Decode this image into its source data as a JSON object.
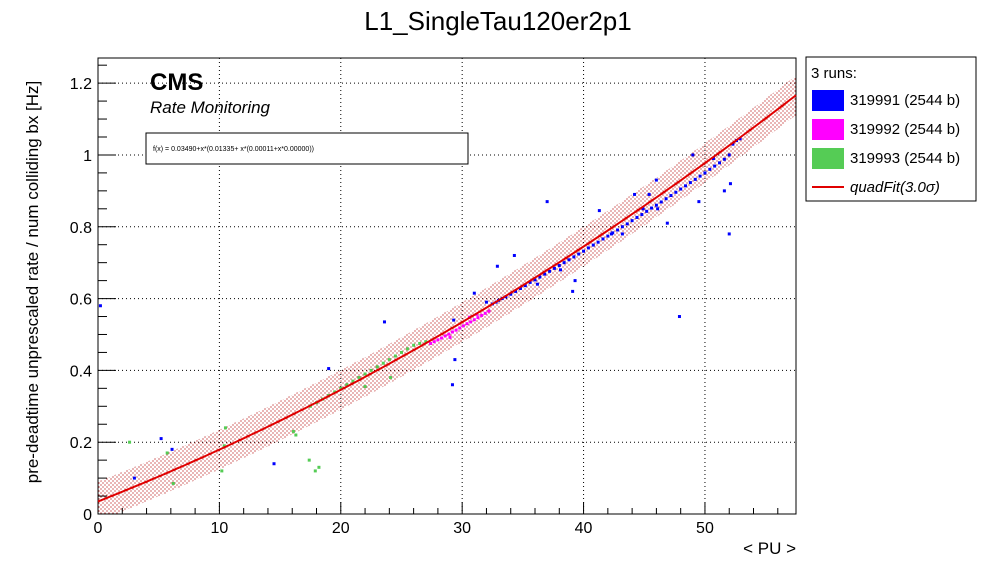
{
  "chart_data": {
    "type": "scatter",
    "title": "L1_SingleTau120er2p1",
    "xlabel": "< PU >",
    "ylabel": "pre-deadtime unprescaled rate / num colliding bx [Hz]",
    "xlim": [
      0,
      57.5
    ],
    "ylim": [
      0,
      1.27
    ],
    "x_ticks": [
      "0",
      "10",
      "20",
      "30",
      "40",
      "50"
    ],
    "y_ticks": [
      "0",
      "0.2",
      "0.4",
      "0.6",
      "0.8",
      "1",
      "1.2"
    ],
    "grid": true,
    "brand": "CMS",
    "subtitle": "Rate Monitoring",
    "fit_formula": "f(x) = 0.03490+x*(0.01335+ x*(0.00011+x*0.00000))",
    "fit": {
      "name": "quadFit(3.0σ)",
      "coefficients": [
        0.0349,
        0.01335,
        0.00011
      ],
      "band_halfwidth": 0.055,
      "color": "#e00000"
    },
    "legend": {
      "header": "3 runs:",
      "position": "outside-right",
      "entries": [
        {
          "label": "319991 (2544 b)",
          "color": "#0000ff"
        },
        {
          "label": "319992 (2544 b)",
          "color": "#ff00ff"
        },
        {
          "label": "319993 (2544 b)",
          "color": "#55cc55"
        },
        {
          "label": "quadFit(3.0σ)",
          "color": "#e00000",
          "kind": "line"
        }
      ]
    },
    "series": [
      {
        "name": "319991 (2544 b)",
        "color": "#0000ff",
        "points": [
          [
            32.5,
            0.585
          ],
          [
            32.8,
            0.59
          ],
          [
            33.0,
            0.595
          ],
          [
            33.3,
            0.6
          ],
          [
            33.6,
            0.605
          ],
          [
            34.0,
            0.612
          ],
          [
            34.4,
            0.62
          ],
          [
            34.8,
            0.628
          ],
          [
            35.2,
            0.636
          ],
          [
            35.6,
            0.645
          ],
          [
            36.0,
            0.652
          ],
          [
            36.4,
            0.66
          ],
          [
            36.8,
            0.668
          ],
          [
            37.2,
            0.676
          ],
          [
            37.6,
            0.684
          ],
          [
            38.0,
            0.692
          ],
          [
            38.4,
            0.7
          ],
          [
            38.8,
            0.708
          ],
          [
            39.2,
            0.716
          ],
          [
            39.6,
            0.724
          ],
          [
            40.0,
            0.732
          ],
          [
            40.4,
            0.741
          ],
          [
            40.8,
            0.749
          ],
          [
            41.2,
            0.757
          ],
          [
            41.6,
            0.766
          ],
          [
            42.0,
            0.774
          ],
          [
            42.4,
            0.783
          ],
          [
            42.8,
            0.791
          ],
          [
            43.2,
            0.8
          ],
          [
            43.6,
            0.808
          ],
          [
            44.0,
            0.817
          ],
          [
            44.4,
            0.826
          ],
          [
            44.8,
            0.834
          ],
          [
            45.2,
            0.843
          ],
          [
            45.6,
            0.852
          ],
          [
            46.0,
            0.86
          ],
          [
            46.4,
            0.869
          ],
          [
            46.8,
            0.878
          ],
          [
            47.2,
            0.887
          ],
          [
            47.6,
            0.896
          ],
          [
            48.0,
            0.905
          ],
          [
            48.4,
            0.914
          ],
          [
            48.8,
            0.923
          ],
          [
            49.2,
            0.932
          ],
          [
            49.6,
            0.941
          ],
          [
            50.0,
            0.95
          ],
          [
            50.4,
            0.96
          ],
          [
            50.8,
            0.969
          ],
          [
            51.2,
            0.978
          ],
          [
            51.6,
            0.988
          ],
          [
            52.0,
            1.0
          ],
          [
            52.3,
            1.03
          ],
          [
            52.6,
            1.04
          ],
          [
            52.9,
            1.045
          ],
          [
            29.3,
            0.54
          ],
          [
            29.4,
            0.43
          ],
          [
            29.2,
            0.36
          ],
          [
            31.0,
            0.615
          ],
          [
            32.0,
            0.59
          ],
          [
            32.9,
            0.69
          ],
          [
            34.3,
            0.72
          ],
          [
            36.2,
            0.64
          ],
          [
            37.0,
            0.87
          ],
          [
            38.1,
            0.68
          ],
          [
            39.1,
            0.62
          ],
          [
            39.3,
            0.65
          ],
          [
            41.3,
            0.845
          ],
          [
            42.3,
            0.78
          ],
          [
            43.2,
            0.78
          ],
          [
            44.2,
            0.89
          ],
          [
            44.9,
            0.85
          ],
          [
            45.4,
            0.89
          ],
          [
            46.0,
            0.93
          ],
          [
            46.1,
            0.85
          ],
          [
            46.9,
            0.81
          ],
          [
            49.0,
            1.0
          ],
          [
            49.5,
            0.87
          ],
          [
            50.7,
            0.99
          ],
          [
            51.6,
            0.9
          ],
          [
            52.1,
            0.92
          ],
          [
            52.0,
            0.78
          ],
          [
            47.9,
            0.55
          ],
          [
            23.6,
            0.535
          ],
          [
            19.0,
            0.405
          ],
          [
            14.5,
            0.14
          ],
          [
            5.2,
            0.21
          ],
          [
            6.1,
            0.18
          ],
          [
            3.0,
            0.1
          ],
          [
            0.2,
            0.58
          ]
        ]
      },
      {
        "name": "319992 (2544 b)",
        "color": "#ff00ff",
        "points": [
          [
            27.4,
            0.475
          ],
          [
            27.7,
            0.48
          ],
          [
            28.0,
            0.485
          ],
          [
            28.3,
            0.49
          ],
          [
            28.6,
            0.496
          ],
          [
            28.9,
            0.501
          ],
          [
            29.2,
            0.507
          ],
          [
            29.5,
            0.512
          ],
          [
            29.8,
            0.518
          ],
          [
            30.1,
            0.524
          ],
          [
            30.4,
            0.53
          ],
          [
            30.7,
            0.535
          ],
          [
            31.0,
            0.541
          ],
          [
            31.3,
            0.547
          ],
          [
            31.6,
            0.553
          ],
          [
            31.9,
            0.559
          ],
          [
            32.2,
            0.565
          ],
          [
            30.6,
            0.548
          ],
          [
            31.2,
            0.556
          ],
          [
            29.0,
            0.492
          ]
        ]
      },
      {
        "name": "319993 (2544 b)",
        "color": "#55cc55",
        "points": [
          [
            17.5,
            0.3
          ],
          [
            18.0,
            0.31
          ],
          [
            18.5,
            0.32
          ],
          [
            19.0,
            0.33
          ],
          [
            19.5,
            0.34
          ],
          [
            20.0,
            0.35
          ],
          [
            20.5,
            0.36
          ],
          [
            21.0,
            0.37
          ],
          [
            21.5,
            0.38
          ],
          [
            22.0,
            0.39
          ],
          [
            22.5,
            0.4
          ],
          [
            23.0,
            0.41
          ],
          [
            23.5,
            0.42
          ],
          [
            24.0,
            0.43
          ],
          [
            24.5,
            0.44
          ],
          [
            25.0,
            0.45
          ],
          [
            25.5,
            0.46
          ],
          [
            26.0,
            0.47
          ],
          [
            26.5,
            0.475
          ],
          [
            27.0,
            0.48
          ],
          [
            2.6,
            0.2
          ],
          [
            5.7,
            0.17
          ],
          [
            6.2,
            0.085
          ],
          [
            10.2,
            0.12
          ],
          [
            10.4,
            0.19
          ],
          [
            10.5,
            0.24
          ],
          [
            16.1,
            0.23
          ],
          [
            16.3,
            0.22
          ],
          [
            17.4,
            0.15
          ],
          [
            17.9,
            0.12
          ],
          [
            18.2,
            0.13
          ],
          [
            22.0,
            0.355
          ],
          [
            24.1,
            0.38
          ]
        ]
      }
    ]
  }
}
